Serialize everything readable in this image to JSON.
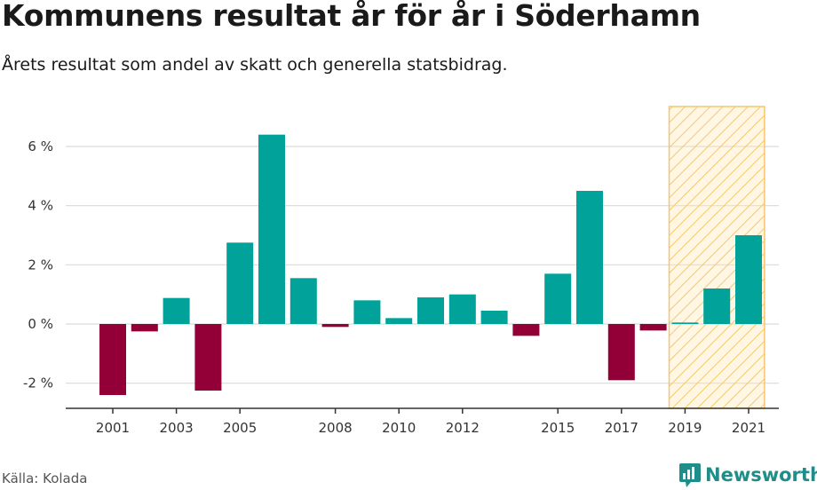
{
  "header": {
    "title": "Kommunens resultat år för år i Söderhamn",
    "subtitle": "Årets resultat som andel av skatt och generella statsbidrag."
  },
  "footer": {
    "source": "Källa: Kolada",
    "brand": "Newsworthy",
    "brand_icon": "newsworthy-logo-icon"
  },
  "colors": {
    "positive": "#00a29a",
    "negative": "#930038",
    "forecast_fill": "#fde7b0",
    "forecast_stroke": "#f5c76a",
    "grid": "#d9d9d9",
    "brand": "#1f8e8a"
  },
  "chart_data": {
    "type": "bar",
    "x": [
      2001,
      2002,
      2003,
      2004,
      2005,
      2006,
      2007,
      2008,
      2009,
      2010,
      2011,
      2012,
      2013,
      2014,
      2015,
      2016,
      2017,
      2018,
      2019,
      2020,
      2021
    ],
    "values": [
      -2.4,
      -0.25,
      0.88,
      -2.25,
      2.75,
      6.4,
      1.55,
      -0.1,
      0.8,
      0.2,
      0.9,
      1.0,
      0.45,
      -0.4,
      1.7,
      4.5,
      -1.9,
      -0.22,
      0.05,
      1.2,
      3.0
    ],
    "x_tick_labels": [
      "2001",
      "2003",
      "2005",
      "2008",
      "2010",
      "2012",
      "2015",
      "2017",
      "2019",
      "2021"
    ],
    "y_ticks": [
      -2,
      0,
      2,
      4,
      6
    ],
    "y_tick_labels": [
      "-2 %",
      "0 %",
      "2 %",
      "4 %",
      "6 %"
    ],
    "ylim": [
      -2.85,
      7.35
    ],
    "highlight_range": [
      2019,
      2021
    ],
    "highlight_style": "hatched",
    "grid": true,
    "legend": "none"
  }
}
